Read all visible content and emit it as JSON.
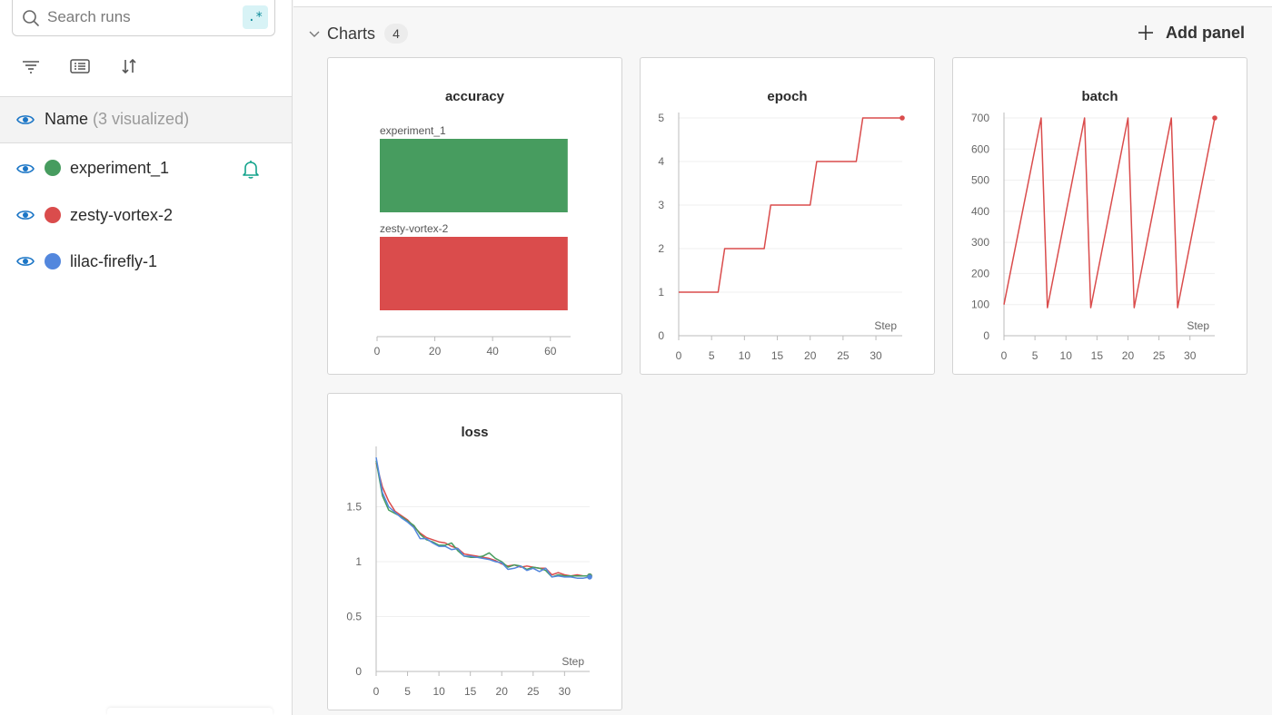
{
  "sidebar": {
    "search": {
      "placeholder": "Search runs",
      "regex_label": ".*"
    },
    "header": {
      "name_label": "Name",
      "count_label": "(3 visualized)"
    },
    "runs": [
      {
        "name": "experiment_1",
        "color": "#479c5f",
        "alert": true
      },
      {
        "name": "zesty-vortex-2",
        "color": "#da4c4c",
        "alert": false
      },
      {
        "name": "lilac-firefly-1",
        "color": "#5387dd",
        "alert": false
      }
    ]
  },
  "section": {
    "title": "Charts",
    "count": "4",
    "add_panel_label": "Add panel"
  },
  "colors": {
    "experiment_1": "#479c5f",
    "zesty-vortex-2": "#da4c4c",
    "lilac-firefly-1": "#5387dd"
  },
  "chart_data": [
    {
      "title": "accuracy",
      "type": "bar",
      "orientation": "horizontal",
      "categories": [
        "experiment_1",
        "zesty-vortex-2"
      ],
      "values": [
        66,
        66
      ],
      "colors": [
        "#479c5f",
        "#da4c4c"
      ],
      "xticks": [
        0,
        20,
        40,
        60
      ],
      "xlim": [
        0,
        67
      ]
    },
    {
      "title": "epoch",
      "type": "line",
      "xlabel": "Step",
      "xlim": [
        0,
        34
      ],
      "ylim": [
        0,
        5
      ],
      "xticks": [
        0,
        5,
        10,
        15,
        20,
        25,
        30
      ],
      "yticks": [
        0,
        1,
        2,
        3,
        4,
        5
      ],
      "series": [
        {
          "name": "zesty-vortex-2",
          "color": "#da4c4c",
          "x": [
            0,
            6,
            7,
            13,
            14,
            20,
            21,
            27,
            28,
            34
          ],
          "y": [
            1,
            1,
            2,
            2,
            3,
            3,
            4,
            4,
            5,
            5
          ]
        }
      ]
    },
    {
      "title": "batch",
      "type": "line",
      "xlabel": "Step",
      "xlim": [
        0,
        34
      ],
      "ylim": [
        0,
        700
      ],
      "xticks": [
        0,
        5,
        10,
        15,
        20,
        25,
        30
      ],
      "yticks": [
        0,
        100,
        200,
        300,
        400,
        500,
        600,
        700
      ],
      "series": [
        {
          "name": "zesty-vortex-2",
          "color": "#da4c4c",
          "x": [
            0,
            6,
            7,
            13,
            14,
            20,
            21,
            27,
            28,
            34
          ],
          "y": [
            100,
            700,
            90,
            700,
            90,
            700,
            90,
            700,
            90,
            700
          ]
        }
      ]
    },
    {
      "title": "loss",
      "type": "line",
      "xlabel": "Step",
      "xlim": [
        0,
        34
      ],
      "ylim": [
        0,
        2
      ],
      "xticks": [
        0,
        5,
        10,
        15,
        20,
        25,
        30
      ],
      "yticks": [
        0,
        0.5,
        1,
        1.5
      ],
      "ytick_labels": [
        "0",
        "0.5",
        "1",
        "1.5"
      ],
      "series": [
        {
          "name": "zesty-vortex-2",
          "color": "#da4c4c",
          "x": [
            0,
            1,
            2,
            3,
            4,
            5,
            6,
            7,
            8,
            9,
            10,
            11,
            12,
            13,
            14,
            15,
            16,
            17,
            18,
            19,
            20,
            21,
            22,
            23,
            24,
            25,
            26,
            27,
            28,
            29,
            30,
            31,
            32,
            33,
            34
          ],
          "y": [
            1.9,
            1.68,
            1.55,
            1.46,
            1.42,
            1.38,
            1.32,
            1.26,
            1.22,
            1.2,
            1.18,
            1.17,
            1.14,
            1.12,
            1.07,
            1.06,
            1.05,
            1.04,
            1.03,
            1.01,
            0.98,
            0.96,
            0.97,
            0.95,
            0.96,
            0.95,
            0.94,
            0.94,
            0.88,
            0.9,
            0.88,
            0.87,
            0.88,
            0.87,
            0.87
          ]
        },
        {
          "name": "experiment_1",
          "color": "#479c5f",
          "x": [
            0,
            1,
            2,
            3,
            4,
            5,
            6,
            7,
            8,
            9,
            10,
            11,
            12,
            13,
            14,
            15,
            16,
            17,
            18,
            19,
            20,
            21,
            22,
            23,
            24,
            25,
            26,
            27,
            28,
            29,
            30,
            31,
            32,
            33,
            34
          ],
          "y": [
            1.92,
            1.6,
            1.47,
            1.44,
            1.41,
            1.37,
            1.33,
            1.25,
            1.2,
            1.18,
            1.15,
            1.15,
            1.17,
            1.1,
            1.05,
            1.04,
            1.04,
            1.05,
            1.08,
            1.03,
            1.0,
            0.95,
            0.97,
            0.96,
            0.93,
            0.95,
            0.94,
            0.92,
            0.86,
            0.88,
            0.87,
            0.87,
            0.87,
            0.87,
            0.87
          ]
        },
        {
          "name": "lilac-firefly-1",
          "color": "#5387dd",
          "x": [
            0,
            1,
            2,
            3,
            4,
            5,
            6,
            7,
            8,
            9,
            10,
            11,
            12,
            13,
            14,
            15,
            16,
            17,
            18,
            19,
            20,
            21,
            22,
            23,
            24,
            25,
            26,
            27,
            28,
            29,
            30,
            31,
            32,
            33,
            34
          ],
          "y": [
            1.95,
            1.63,
            1.5,
            1.45,
            1.4,
            1.36,
            1.31,
            1.21,
            1.21,
            1.17,
            1.14,
            1.14,
            1.11,
            1.12,
            1.05,
            1.05,
            1.04,
            1.03,
            1.02,
            1.0,
            0.99,
            0.93,
            0.94,
            0.96,
            0.92,
            0.94,
            0.91,
            0.94,
            0.86,
            0.87,
            0.86,
            0.86,
            0.85,
            0.85,
            0.86
          ]
        }
      ]
    }
  ]
}
